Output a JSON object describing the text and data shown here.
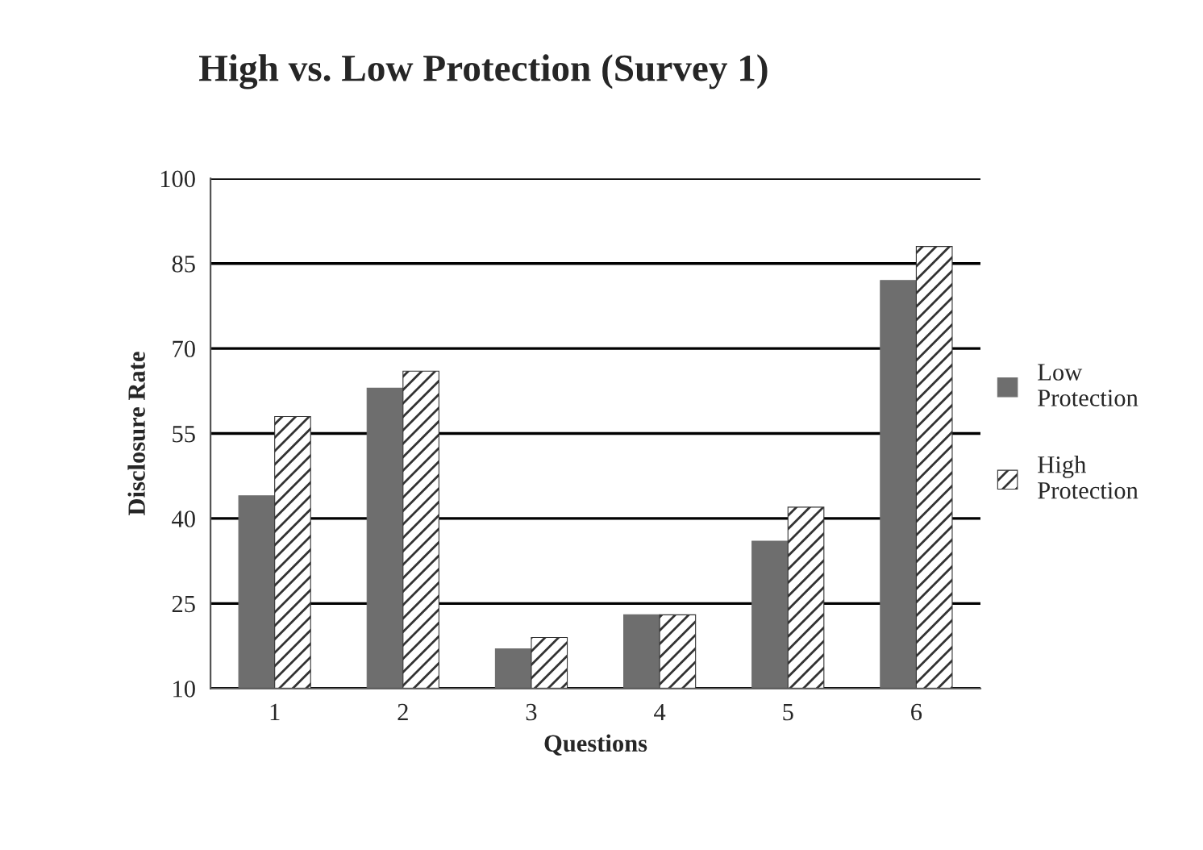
{
  "chart_data": {
    "type": "bar",
    "title": "High vs. Low Protection (Survey 1)",
    "xlabel": "Questions",
    "ylabel": "Disclosure Rate",
    "categories": [
      "1",
      "2",
      "3",
      "4",
      "5",
      "6"
    ],
    "series": [
      {
        "name": "Low\nProtection",
        "color": "#6e6e6e",
        "values": [
          44,
          63,
          17,
          23,
          36,
          82
        ]
      },
      {
        "name": "High\nProtection",
        "color": "#333333",
        "values": [
          58,
          66,
          19,
          23,
          42,
          88
        ]
      }
    ],
    "ylim": [
      10,
      100
    ],
    "yticks": [
      10,
      25,
      40,
      55,
      70,
      85,
      100
    ],
    "grid": "y",
    "legend": "right"
  }
}
